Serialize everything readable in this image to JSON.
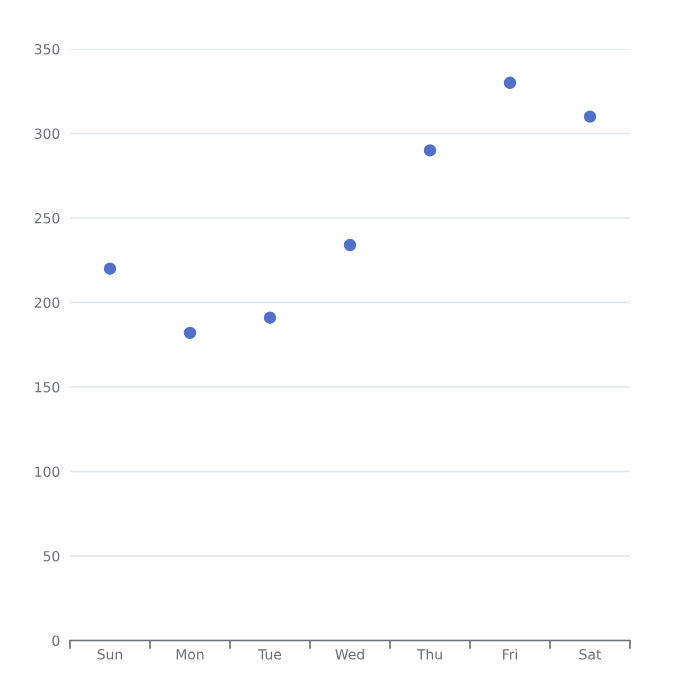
{
  "chart_data": {
    "type": "scatter",
    "categories": [
      "Sun",
      "Mon",
      "Tue",
      "Wed",
      "Thu",
      "Fri",
      "Sat"
    ],
    "series": [
      {
        "color": "#5470c6",
        "values": [
          220,
          182,
          191,
          234,
          290,
          330,
          310
        ]
      }
    ],
    "ylim": [
      0,
      350
    ],
    "yticks": [
      0,
      50,
      100,
      150,
      200,
      250,
      300,
      350
    ],
    "grid": "y",
    "marker": "circle"
  }
}
